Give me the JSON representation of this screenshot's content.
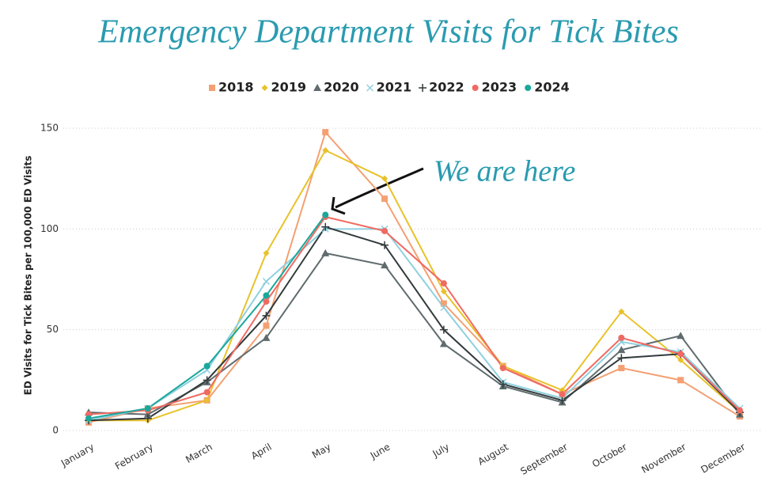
{
  "chart_data": {
    "type": "line",
    "title": "Emergency Department Visits for Tick Bites",
    "y_label": "ED Visits for Tick Bites per 100,000 ED Visits",
    "annotation": "We are here",
    "categories": [
      "January",
      "February",
      "March",
      "April",
      "May",
      "June",
      "July",
      "August",
      "September",
      "October",
      "November",
      "December"
    ],
    "ylim": [
      0,
      150
    ],
    "yticks": [
      0,
      50,
      100,
      150
    ],
    "grid": true,
    "series": [
      {
        "name": "2018",
        "color": "#f4a072",
        "marker": "square",
        "values": [
          4,
          11,
          15,
          52,
          148,
          115,
          63,
          32,
          18,
          31,
          25,
          7
        ]
      },
      {
        "name": "2019",
        "color": "#e8c22a",
        "marker": "diamond",
        "values": [
          5,
          5,
          15,
          88,
          139,
          125,
          69,
          32,
          20,
          59,
          35,
          9
        ]
      },
      {
        "name": "2020",
        "color": "#5f6b6d",
        "marker": "triangle",
        "values": [
          9,
          8,
          24,
          46,
          88,
          82,
          43,
          22,
          14,
          40,
          47,
          8
        ]
      },
      {
        "name": "2021",
        "color": "#8fd0e0",
        "marker": "x",
        "values": [
          5,
          11,
          30,
          74,
          100,
          100,
          61,
          24,
          16,
          44,
          39,
          11
        ]
      },
      {
        "name": "2022",
        "color": "#333a3c",
        "marker": "plus",
        "values": [
          5,
          6,
          25,
          57,
          101,
          92,
          50,
          23,
          15,
          36,
          38,
          9
        ]
      },
      {
        "name": "2023",
        "color": "#f06a62",
        "marker": "circle",
        "values": [
          8,
          10,
          19,
          64,
          106,
          99,
          73,
          31,
          18,
          46,
          38,
          10
        ]
      },
      {
        "name": "2024",
        "color": "#1aa89a",
        "marker": "circle",
        "values": [
          6,
          11,
          32,
          67,
          107,
          null,
          null,
          null,
          null,
          null,
          null,
          null
        ]
      }
    ]
  }
}
